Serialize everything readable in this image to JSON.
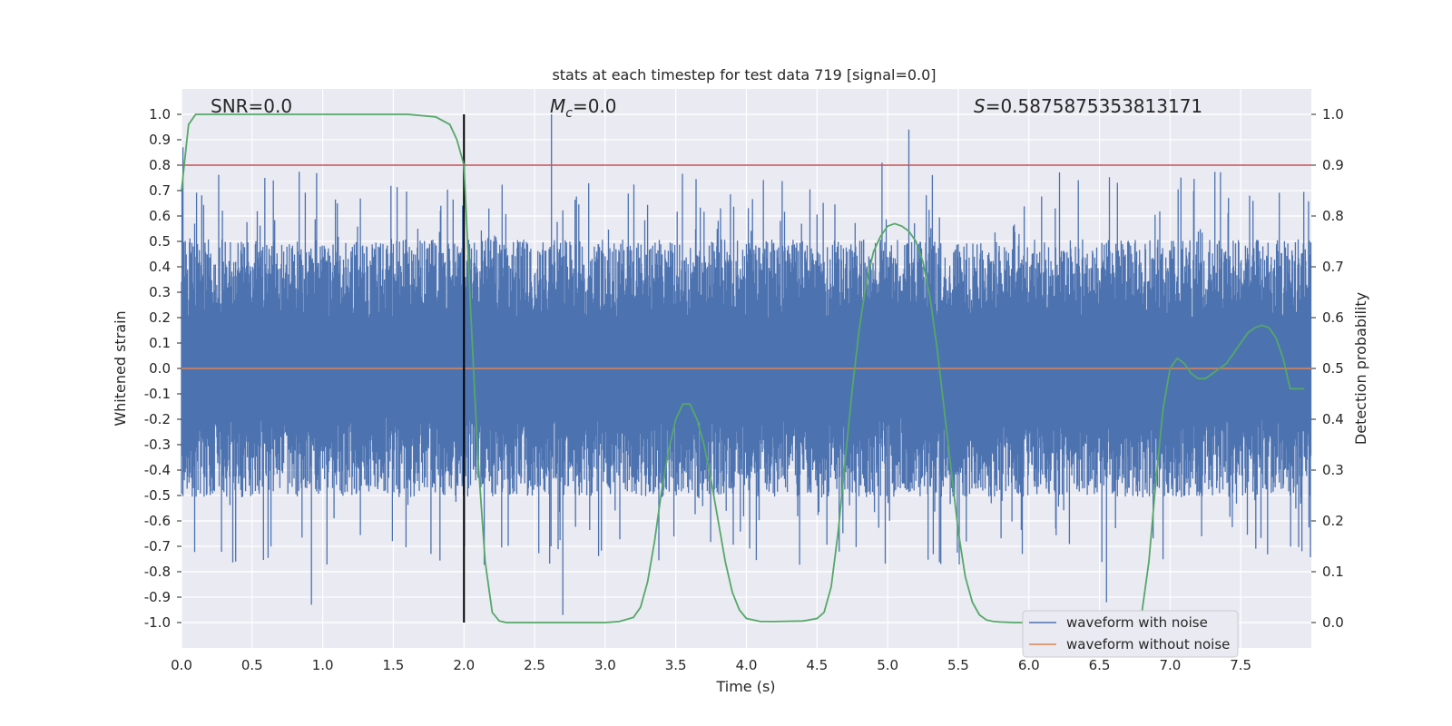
{
  "chart_data": {
    "type": "line",
    "title": "stats at each timestep for test data 719 [signal=0.0]",
    "xlabel": "Time (s)",
    "ylabel": "Whitened strain",
    "ylabel_right": "Detection probability",
    "xlim": [
      0.0,
      8.0
    ],
    "ylim": [
      -1.1,
      1.1
    ],
    "ylim_right": [
      -0.05,
      1.05
    ],
    "x_ticks": [
      "0.0",
      "0.5",
      "1.0",
      "1.5",
      "2.0",
      "2.5",
      "3.0",
      "3.5",
      "4.0",
      "4.5",
      "5.0",
      "5.5",
      "6.0",
      "6.5",
      "7.0",
      "7.5"
    ],
    "y_ticks": [
      "1.0",
      "0.9",
      "0.8",
      "0.7",
      "0.6",
      "0.5",
      "0.4",
      "0.3",
      "0.2",
      "0.1",
      "0.0",
      "-0.1",
      "-0.2",
      "-0.3",
      "-0.4",
      "-0.5",
      "-0.6",
      "-0.7",
      "-0.8",
      "-0.9",
      "-1.0"
    ],
    "y_ticks_right": [
      "1.0",
      "0.9",
      "0.8",
      "0.7",
      "0.6",
      "0.5",
      "0.4",
      "0.3",
      "0.2",
      "0.1",
      "0.0"
    ],
    "grid": true,
    "annotations": {
      "snr": "SNR=0.0",
      "mc_symbol": "M",
      "mc_subscript": "c",
      "mc_value": "=0.0",
      "s_symbol": "S",
      "s_value": "=0.5875875353813171"
    },
    "threshold_line": {
      "y_right": 0.9,
      "color": "#c44e52"
    },
    "vertical_marker": {
      "x": 2.0,
      "color": "#000000"
    },
    "legend": {
      "placement": "lower-right",
      "entries": [
        {
          "label": "waveform with noise",
          "color": "#4c72b0"
        },
        {
          "label": "waveform without noise",
          "color": "#dd8452"
        }
      ]
    },
    "series": [
      {
        "name": "waveform with noise",
        "color": "#4c72b0",
        "axis": "left",
        "description_kind": "noise",
        "envelope_upper_typical": 0.35,
        "envelope_lower_typical": -0.35,
        "spikes": [
          {
            "x": 0.01,
            "y": 0.87
          },
          {
            "x": 0.92,
            "y": -0.93
          },
          {
            "x": 2.62,
            "y": 1.0
          },
          {
            "x": 2.7,
            "y": -0.97
          },
          {
            "x": 4.96,
            "y": 0.81
          },
          {
            "x": 5.15,
            "y": 0.94
          },
          {
            "x": 6.55,
            "y": -0.92
          }
        ]
      },
      {
        "name": "waveform without noise",
        "color": "#dd8452",
        "axis": "left",
        "x": [
          0.0,
          8.0
        ],
        "y": [
          0.0,
          0.0
        ]
      },
      {
        "name": "detection probability",
        "color": "#55a868",
        "axis": "right",
        "x": [
          0.0,
          0.05,
          0.1,
          0.2,
          0.4,
          0.8,
          1.2,
          1.6,
          1.8,
          1.9,
          1.95,
          2.0,
          2.05,
          2.1,
          2.15,
          2.2,
          2.25,
          2.3,
          2.5,
          2.8,
          3.0,
          3.1,
          3.2,
          3.25,
          3.3,
          3.35,
          3.4,
          3.45,
          3.5,
          3.55,
          3.6,
          3.65,
          3.7,
          3.75,
          3.8,
          3.85,
          3.9,
          3.95,
          4.0,
          4.1,
          4.2,
          4.4,
          4.5,
          4.55,
          4.6,
          4.65,
          4.7,
          4.75,
          4.8,
          4.85,
          4.9,
          4.95,
          5.0,
          5.05,
          5.1,
          5.15,
          5.2,
          5.25,
          5.3,
          5.35,
          5.4,
          5.45,
          5.5,
          5.55,
          5.6,
          5.65,
          5.7,
          5.75,
          5.8,
          5.9,
          6.1,
          6.5,
          6.7,
          6.8,
          6.85,
          6.9,
          6.95,
          7.0,
          7.05,
          7.1,
          7.15,
          7.2,
          7.25,
          7.3,
          7.35,
          7.4,
          7.45,
          7.5,
          7.55,
          7.6,
          7.65,
          7.7,
          7.75,
          7.8,
          7.85,
          7.9,
          7.95
        ],
        "y": [
          0.85,
          0.98,
          1.0,
          1.0,
          1.0,
          1.0,
          1.0,
          1.0,
          0.995,
          0.98,
          0.95,
          0.9,
          0.6,
          0.32,
          0.12,
          0.02,
          0.003,
          0.0,
          0.0,
          0.0,
          0.0,
          0.002,
          0.01,
          0.03,
          0.08,
          0.16,
          0.26,
          0.34,
          0.4,
          0.43,
          0.43,
          0.4,
          0.35,
          0.28,
          0.2,
          0.12,
          0.06,
          0.025,
          0.008,
          0.002,
          0.002,
          0.003,
          0.008,
          0.02,
          0.07,
          0.18,
          0.32,
          0.46,
          0.58,
          0.67,
          0.73,
          0.76,
          0.78,
          0.785,
          0.78,
          0.77,
          0.75,
          0.71,
          0.64,
          0.54,
          0.42,
          0.3,
          0.18,
          0.09,
          0.04,
          0.015,
          0.005,
          0.002,
          0.001,
          0.0,
          0.0,
          0.0,
          0.001,
          0.02,
          0.12,
          0.28,
          0.42,
          0.5,
          0.52,
          0.51,
          0.49,
          0.48,
          0.48,
          0.49,
          0.5,
          0.51,
          0.53,
          0.55,
          0.57,
          0.58,
          0.585,
          0.58,
          0.56,
          0.52,
          0.46,
          0.46,
          0.46
        ]
      }
    ]
  }
}
